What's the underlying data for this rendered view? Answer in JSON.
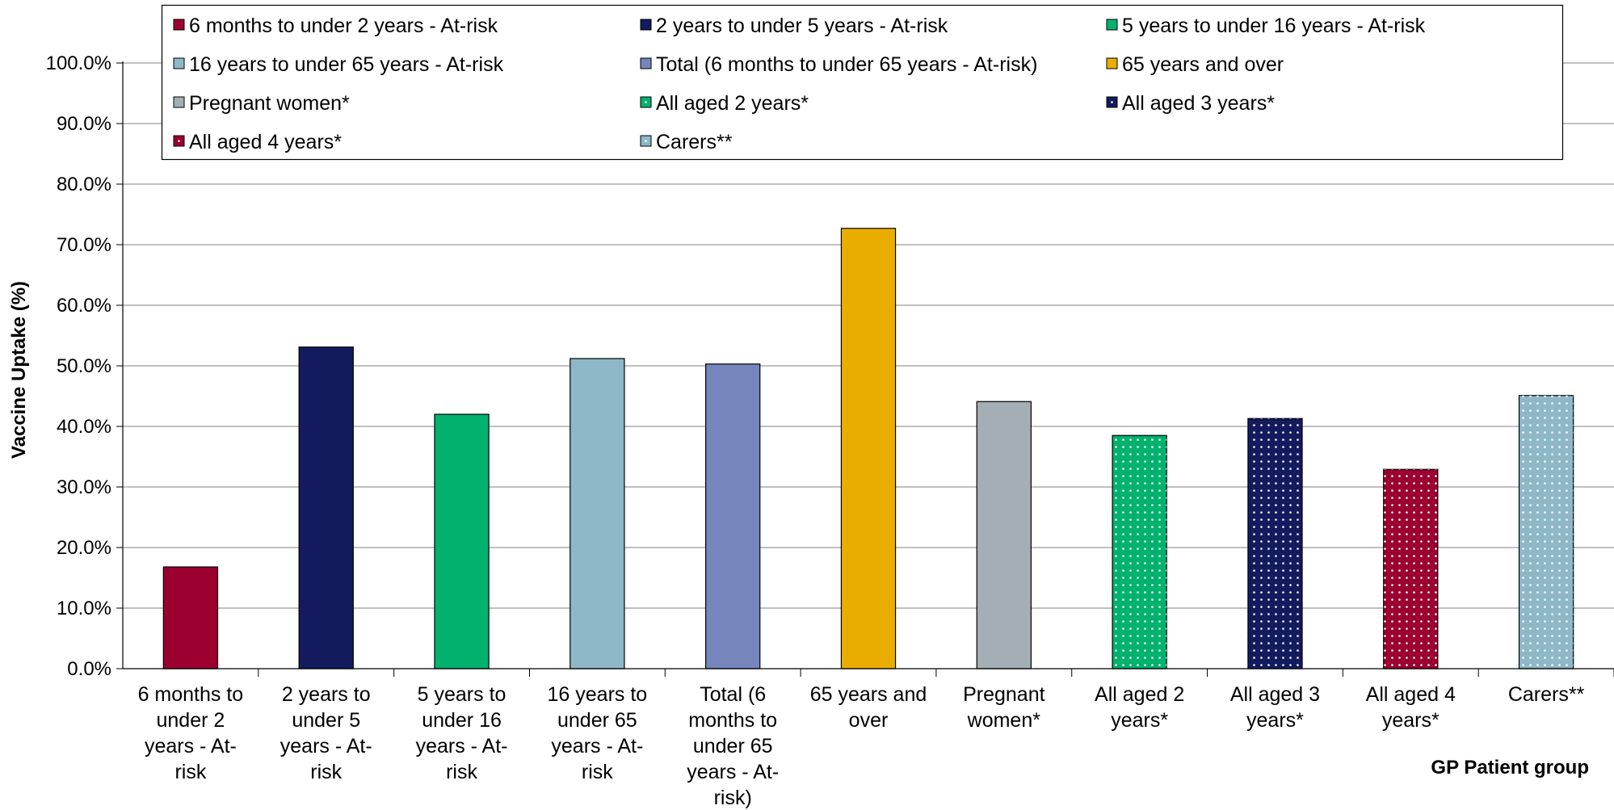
{
  "chart_data": {
    "type": "bar",
    "ylabel": "Vaccine Uptake (%)",
    "xlabel": "GP Patient group",
    "ylim": [
      0,
      100
    ],
    "yticks": [
      "0.0%",
      "10.0%",
      "20.0%",
      "30.0%",
      "40.0%",
      "50.0%",
      "60.0%",
      "70.0%",
      "80.0%",
      "90.0%",
      "100.0%"
    ],
    "grid": true,
    "legend_position": "top",
    "categories": [
      "6 months to under 2 years - At-risk",
      "2 years to under 5 years - At-risk",
      "5 years to under 16 years - At-risk",
      "16 years to under 65 years - At-risk",
      "Total (6 months to under 65 years - At-risk)",
      "65 years and over",
      "Pregnant women*",
      "All aged 2 years*",
      "All aged 3 years*",
      "All aged 4 years*",
      "Carers**"
    ],
    "category_label_lines": [
      [
        "6 months to",
        "under 2",
        "years - At-",
        "risk"
      ],
      [
        "2 years to",
        "under 5",
        "years - At-",
        "risk"
      ],
      [
        "5 years to",
        "under 16",
        "years - At-",
        "risk"
      ],
      [
        "16 years to",
        "under 65",
        "years - At-",
        "risk"
      ],
      [
        "Total (6",
        "months to",
        "under 65",
        "years - At-",
        "risk)"
      ],
      [
        "65 years and",
        "over"
      ],
      [
        "Pregnant",
        "women*"
      ],
      [
        "All aged 2",
        "years*"
      ],
      [
        "All aged 3",
        "years*"
      ],
      [
        "All aged 4",
        "years*"
      ],
      [
        "Carers**"
      ]
    ],
    "values": [
      16.8,
      53.1,
      42.0,
      51.2,
      50.3,
      72.7,
      44.1,
      38.5,
      41.3,
      32.9,
      45.1
    ],
    "colors": [
      "#9B0030",
      "#131B5E",
      "#00B26E",
      "#8EB8C7",
      "#7686BD",
      "#E9AD00",
      "#A3AFB5",
      "#00B26E",
      "#131B5E",
      "#9B0030",
      "#8EB8C7"
    ],
    "dotted": [
      false,
      false,
      false,
      false,
      false,
      false,
      false,
      true,
      true,
      true,
      true
    ],
    "legend": [
      {
        "label": "6 months to under 2 years - At-risk",
        "color": "#9B0030",
        "dotted": false
      },
      {
        "label": "2 years to under 5 years - At-risk",
        "color": "#131B5E",
        "dotted": false
      },
      {
        "label": "5 years to under 16 years - At-risk",
        "color": "#00B26E",
        "dotted": false
      },
      {
        "label": "16 years to under 65 years - At-risk",
        "color": "#8EB8C7",
        "dotted": false
      },
      {
        "label": "Total (6 months to under 65 years - At-risk)",
        "color": "#7686BD",
        "dotted": false
      },
      {
        "label": "65 years and over",
        "color": "#E9AD00",
        "dotted": false
      },
      {
        "label": "Pregnant women*",
        "color": "#A3AFB5",
        "dotted": false
      },
      {
        "label": "All aged 2 years*",
        "color": "#00B26E",
        "dotted": true
      },
      {
        "label": "All aged 3 years*",
        "color": "#131B5E",
        "dotted": true
      },
      {
        "label": "All aged 4 years*",
        "color": "#9B0030",
        "dotted": true
      },
      {
        "label": "Carers**",
        "color": "#8EB8C7",
        "dotted": true
      }
    ]
  }
}
